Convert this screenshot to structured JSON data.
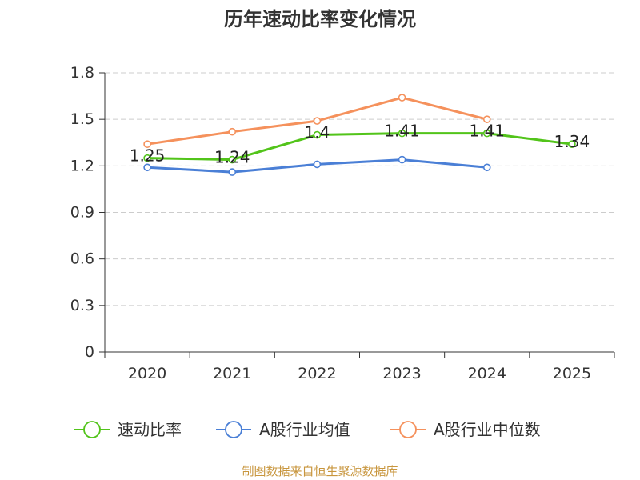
{
  "chart_data": {
    "type": "line",
    "title": "历年速动比率变化情况",
    "categories": [
      "2020",
      "2021",
      "2022",
      "2023",
      "2024",
      "2025"
    ],
    "ylim": [
      0,
      1.8
    ],
    "yticks": [
      "0",
      "0.3",
      "0.6",
      "0.9",
      "1.2",
      "1.5",
      "1.8"
    ],
    "grid": true,
    "legend_position": "bottom",
    "series": [
      {
        "name": "速动比率",
        "color": "#52c41a",
        "values": [
          1.25,
          1.24,
          1.4,
          1.41,
          1.41,
          1.34
        ],
        "labels": [
          "1.25",
          "1.24",
          "1.4",
          "1.41",
          "1.41",
          "1.34"
        ],
        "show_labels": true
      },
      {
        "name": "A股行业均值",
        "color": "#4a7fd6",
        "values": [
          1.19,
          1.16,
          1.21,
          1.24,
          1.19,
          null
        ],
        "show_labels": false
      },
      {
        "name": "A股行业中位数",
        "color": "#f5915c",
        "values": [
          1.34,
          1.42,
          1.49,
          1.64,
          1.5,
          null
        ],
        "show_labels": false
      }
    ]
  },
  "footer": {
    "source": "制图数据来自恒生聚源数据库"
  }
}
